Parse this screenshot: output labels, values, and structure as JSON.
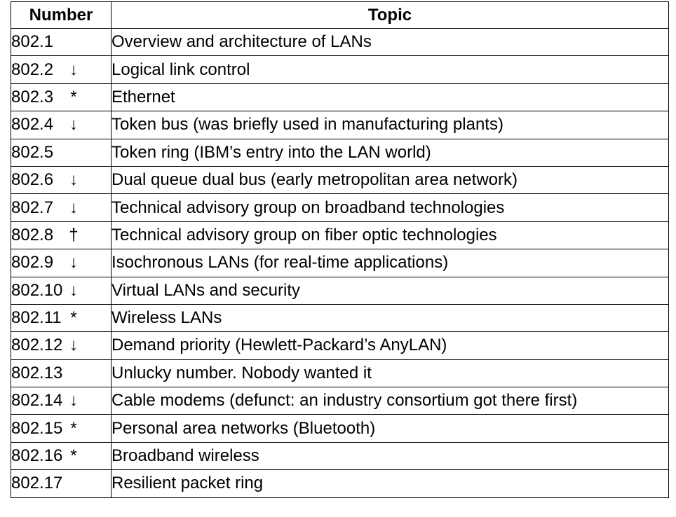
{
  "table": {
    "headers": {
      "number": "Number",
      "topic": "Topic"
    },
    "rows": [
      {
        "number": "802.1",
        "mark": "",
        "topic": "Overview and architecture of LANs"
      },
      {
        "number": "802.2",
        "mark": "↓",
        "topic": "Logical link control"
      },
      {
        "number": "802.3",
        "mark": "*",
        "topic": "Ethernet"
      },
      {
        "number": "802.4",
        "mark": "↓",
        "topic": "Token bus (was briefly used in manufacturing plants)"
      },
      {
        "number": "802.5",
        "mark": "",
        "topic": "Token ring (IBM’s entry into the LAN world)"
      },
      {
        "number": "802.6",
        "mark": "↓",
        "topic": "Dual queue dual bus (early metropolitan area network)"
      },
      {
        "number": "802.7",
        "mark": "↓",
        "topic": "Technical advisory group on broadband technologies"
      },
      {
        "number": "802.8",
        "mark": "†",
        "topic": "Technical advisory group on fiber optic technologies"
      },
      {
        "number": "802.9",
        "mark": "↓",
        "topic": "Isochronous LANs (for real-time applications)"
      },
      {
        "number": "802.10",
        "mark": "↓",
        "topic": "Virtual LANs and security"
      },
      {
        "number": "802.11",
        "mark": "*",
        "topic": "Wireless LANs"
      },
      {
        "number": "802.12",
        "mark": "↓",
        "topic": "Demand priority (Hewlett-Packard’s AnyLAN)"
      },
      {
        "number": "802.13",
        "mark": "",
        "topic": "Unlucky number. Nobody wanted it"
      },
      {
        "number": "802.14",
        "mark": "↓",
        "topic": "Cable modems (defunct: an industry consortium got there first)"
      },
      {
        "number": "802.15",
        "mark": "*",
        "topic": "Personal area networks (Bluetooth)"
      },
      {
        "number": "802.16",
        "mark": "*",
        "topic": "Broadband wireless"
      },
      {
        "number": "802.17",
        "mark": "",
        "topic": "Resilient packet ring"
      }
    ]
  }
}
